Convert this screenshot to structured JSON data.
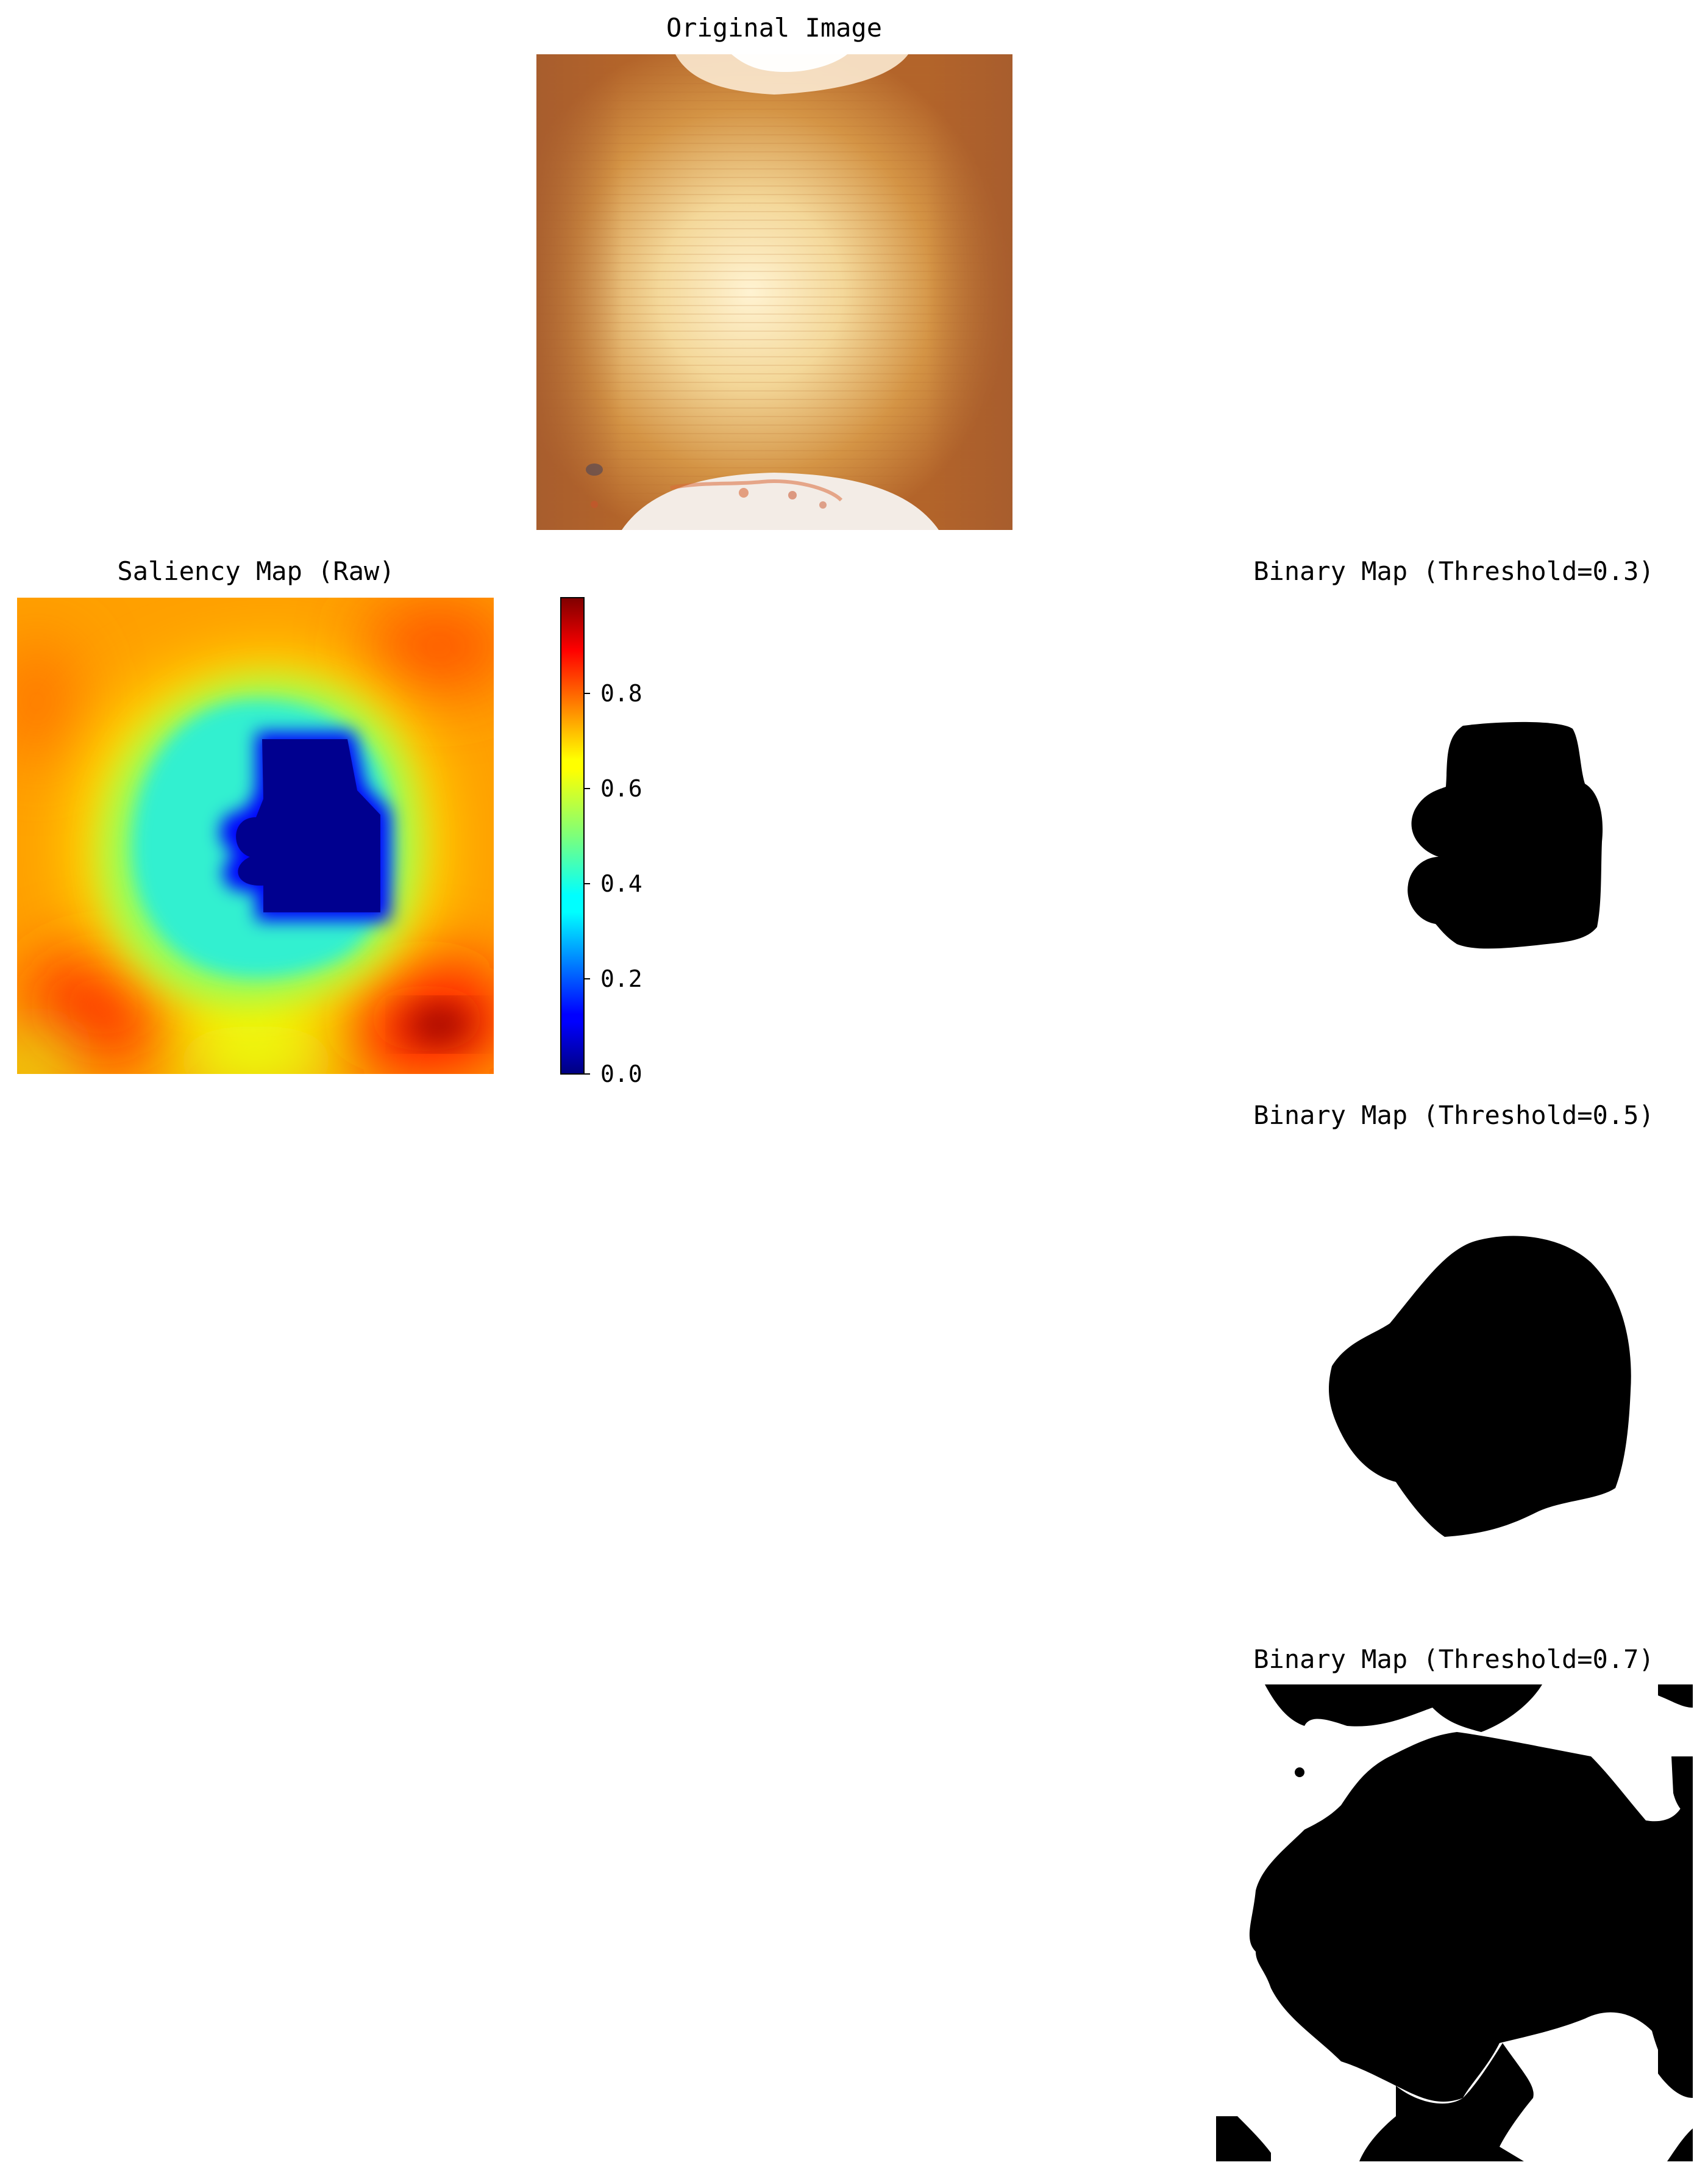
{
  "panels": {
    "original": {
      "title": "Original Image"
    },
    "saliency": {
      "title": "Saliency Map (Raw)",
      "colormap": "jet",
      "colorbar": {
        "ticks": [
          "0.0",
          "0.2",
          "0.4",
          "0.6",
          "0.8"
        ],
        "range": [
          0.0,
          0.99
        ]
      }
    },
    "binary": [
      {
        "title": "Binary Map (Threshold=0.3)",
        "threshold": 0.3
      },
      {
        "title": "Binary Map (Threshold=0.5)",
        "threshold": 0.5
      },
      {
        "title": "Binary Map (Threshold=0.7)",
        "threshold": 0.7
      }
    ]
  },
  "colors": {
    "background": "#ffffff",
    "foreground_mask": "#000000",
    "jet_low": "#00007f",
    "jet_high": "#7f0000"
  }
}
